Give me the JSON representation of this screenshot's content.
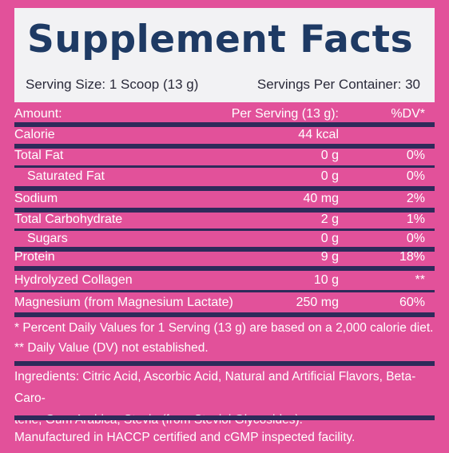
{
  "header": {
    "title": "Supplement Facts",
    "serving_size": "Serving Size: 1 Scoop (13 g)",
    "servings_per_container": "Servings Per Container: 30"
  },
  "table": {
    "col_amount": "Amount:",
    "col_per_serving": "Per Serving (13 g):",
    "col_dv": "%DV*",
    "rows": [
      {
        "name": "Calorie",
        "amount": "44 kcal",
        "dv": ""
      },
      {
        "name": "Total Fat",
        "amount": "0 g",
        "dv": "0%"
      },
      {
        "name": "Saturated Fat",
        "amount": "0 g",
        "dv": "0%"
      },
      {
        "name": "Sodium",
        "amount": "40 mg",
        "dv": "2%"
      },
      {
        "name": "Total Carbohydrate",
        "amount": "2 g",
        "dv": "1%"
      },
      {
        "name": "Sugars",
        "amount": "0 g",
        "dv": "0%"
      },
      {
        "name": "Protein",
        "amount": "9 g",
        "dv": "18%"
      },
      {
        "name": "Hydrolyzed Collagen",
        "amount": "10 g",
        "dv": "**"
      },
      {
        "name": "Magnesium (from Magnesium Lactate)",
        "amount": "250 mg",
        "dv": "60%"
      }
    ]
  },
  "footnotes": {
    "dv_note": "* Percent Daily Values for 1 Serving (13 g) are based on a 2,000 calorie diet.",
    "dv_not_established": "** Daily Value (DV) not established."
  },
  "ingredients_line1": "Ingredients: Citric Acid, Ascorbic Acid, Natural and Artificial Flavors, Beta-Caro-",
  "ingredients_line2": "tene, Gum Arabica, Stevia (from Steviol Glycosides).",
  "manufacturing": "Manufactured in HACCP certified and cGMP inspected facility.",
  "colors": {
    "background": "#e2519a",
    "title_box": "#f2f2f4",
    "title_text": "#1e3a64",
    "rules": "#2e2a5a"
  }
}
